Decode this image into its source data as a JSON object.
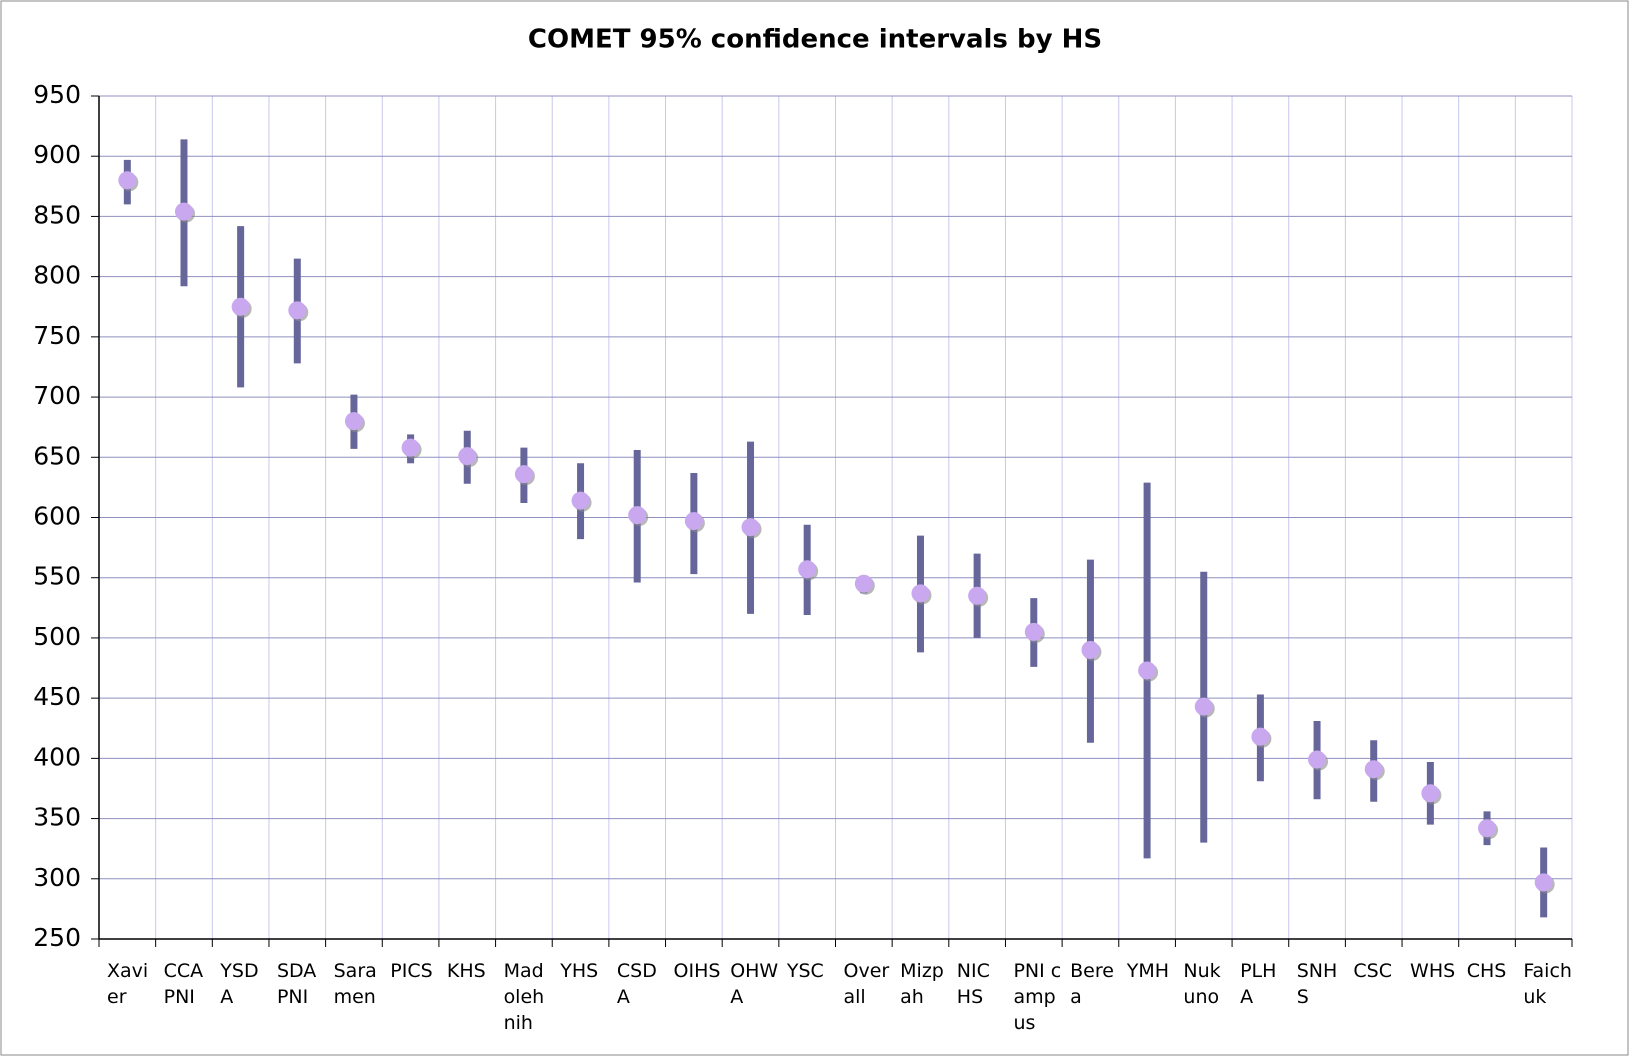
{
  "chart_data": {
    "type": "errorbar",
    "title": "COMET 95% confidence intervals by HS",
    "categories": [
      "Xavier",
      "CCA PNI",
      "YSDA",
      "SDA PNI",
      "Saramen",
      "PICS",
      "KHS",
      "Madolehnih",
      "YHS",
      "CSDA",
      "OIHS",
      "OHWA",
      "YSC",
      "Overall",
      "Mizpah",
      "NIC HS",
      "PNI campus",
      "Berea",
      "YMH",
      "Nukuno",
      "PLHA",
      "SNHS",
      "CSC",
      "WHS",
      "CHS",
      "Faichuk"
    ],
    "values": [
      880,
      854,
      775,
      772,
      680,
      658,
      651,
      636,
      614,
      602,
      597,
      592,
      557,
      545,
      537,
      535,
      505,
      490,
      473,
      443,
      418,
      399,
      391,
      371,
      342,
      297
    ],
    "lower": [
      860,
      792,
      708,
      728,
      657,
      645,
      628,
      612,
      582,
      546,
      553,
      520,
      519,
      537,
      488,
      500,
      476,
      413,
      317,
      330,
      381,
      366,
      364,
      345,
      328,
      268
    ],
    "upper": [
      897,
      914,
      842,
      815,
      702,
      669,
      672,
      658,
      645,
      656,
      637,
      663,
      594,
      551,
      585,
      570,
      533,
      565,
      629,
      555,
      453,
      431,
      415,
      397,
      356,
      326
    ],
    "color": "#66669a",
    "marker_color": "#c9a8f0",
    "ylim": [
      250,
      950
    ],
    "yticks": [
      250,
      300,
      350,
      400,
      450,
      500,
      550,
      600,
      650,
      700,
      750,
      800,
      850,
      900,
      950
    ],
    "grid": true
  }
}
